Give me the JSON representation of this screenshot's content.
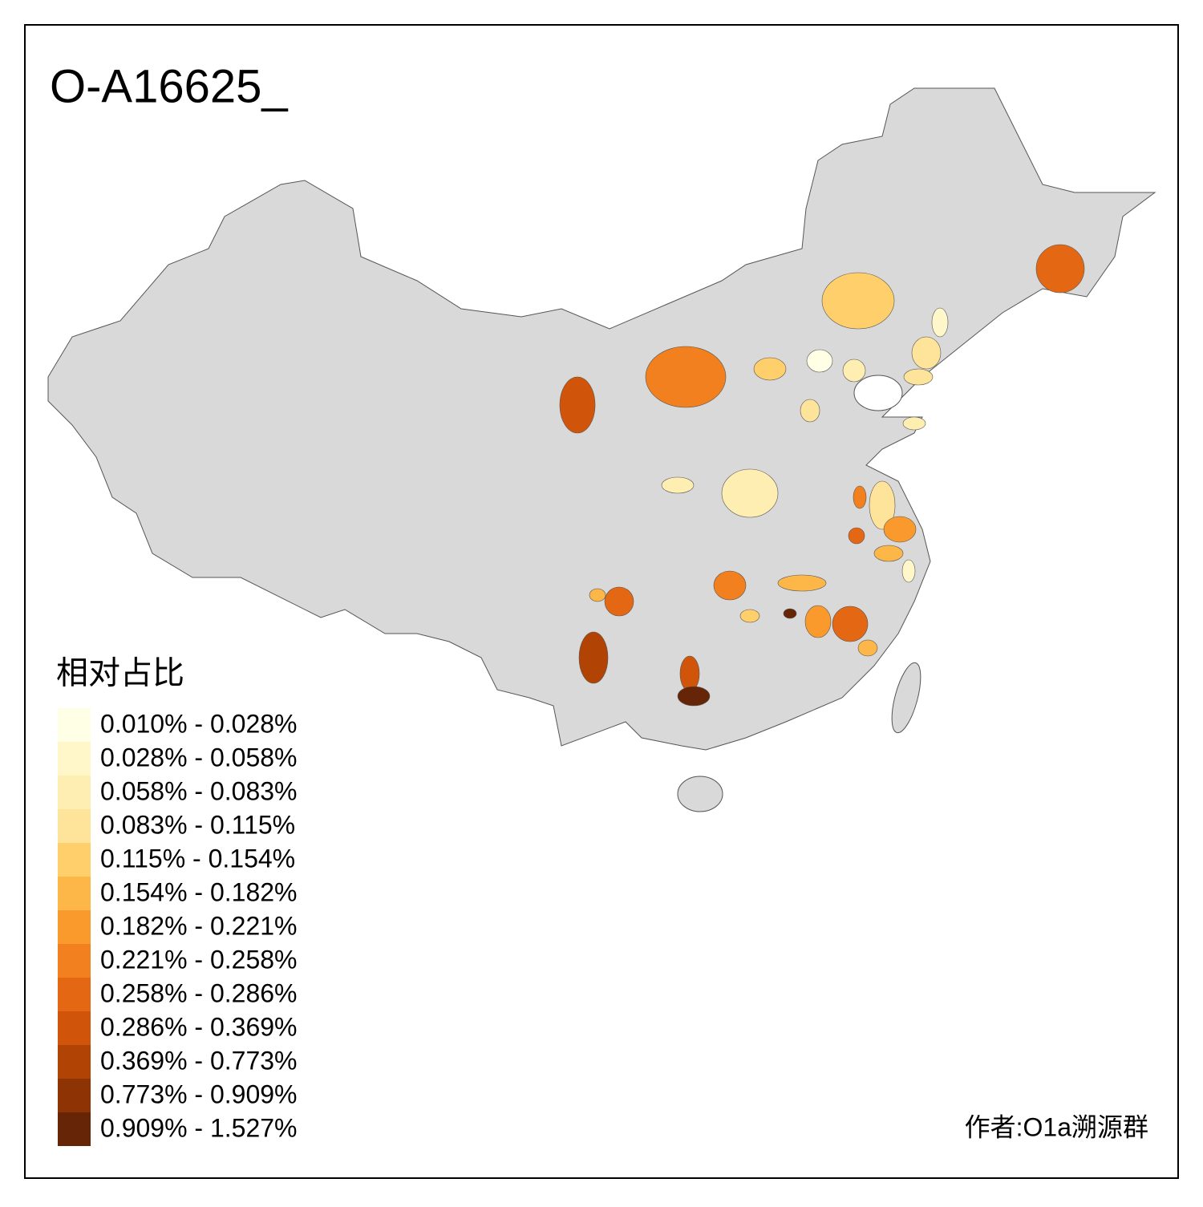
{
  "title": "O-A16625_",
  "legend": {
    "title": "相对占比",
    "entries": [
      {
        "label": "0.010% - 0.028%",
        "color": "#ffffe5"
      },
      {
        "label": "0.028% - 0.058%",
        "color": "#fff7c9"
      },
      {
        "label": "0.058% - 0.083%",
        "color": "#feeeb2"
      },
      {
        "label": "0.083% - 0.115%",
        "color": "#fee39a"
      },
      {
        "label": "0.115% - 0.154%",
        "color": "#fecf6a"
      },
      {
        "label": "0.154% - 0.182%",
        "color": "#fdb648"
      },
      {
        "label": "0.182% - 0.221%",
        "color": "#fb9a2c"
      },
      {
        "label": "0.221% - 0.258%",
        "color": "#f2801f"
      },
      {
        "label": "0.258% - 0.286%",
        "color": "#e46814"
      },
      {
        "label": "0.286% - 0.369%",
        "color": "#d0540a"
      },
      {
        "label": "0.369% - 0.773%",
        "color": "#b14305"
      },
      {
        "label": "0.773% - 0.909%",
        "color": "#8e3404"
      },
      {
        "label": "0.909% - 1.527%",
        "color": "#662506"
      }
    ]
  },
  "author": "作者:O1a溯源群"
}
